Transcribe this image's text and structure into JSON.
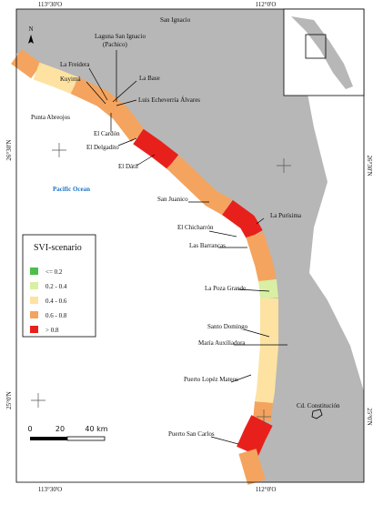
{
  "coordinates": {
    "top": [
      "113°30'O",
      "112°0'O"
    ],
    "bottom": [
      "113°30'O",
      "112°0'O"
    ],
    "left": [
      "26°30'N",
      "25°0'N"
    ],
    "right": [
      "26°30'N",
      "25°0'N"
    ]
  },
  "north": "N",
  "ocean": "Pacific Ocean",
  "places": [
    "San Ignacio",
    "Laguna San Ignacio",
    "(Pachico)",
    "La Freidera",
    "La Base",
    "Kuyimá",
    "Luis Echeverría Álvares",
    "Punta Abreojos",
    "El Cardón",
    "El Delgadito",
    "El Dátil",
    "San Juanico",
    "La Purísima",
    "El Chicharrón",
    "Las Barrancas",
    "La Poza Grande",
    "Santo Domingo",
    "María Auxiliadora",
    "Puerto Lopéz Mateos",
    "Cd. Constitución",
    "Puerto San Carlos"
  ],
  "legend": {
    "title": "SVI-scenario",
    "items": [
      {
        "label": "<= 0.2",
        "color": "#4cbf4a"
      },
      {
        "label": "0.2 - 0.4",
        "color": "#d9efa3"
      },
      {
        "label": "0.4 - 0.6",
        "color": "#fde2a2"
      },
      {
        "label": "0.6 - 0.8",
        "color": "#f4a45e"
      },
      {
        "label": "> 0.8",
        "color": "#e8201c"
      }
    ]
  },
  "scale": {
    "labels": [
      "0",
      "20",
      "40 km"
    ]
  }
}
